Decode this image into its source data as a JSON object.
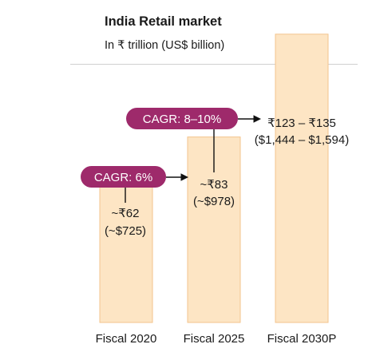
{
  "chart_data": {
    "type": "bar",
    "title": "India Retail market",
    "subtitle": "In ₹ trillion (US$ billion)",
    "categories": [
      "Fiscal 2020",
      "Fiscal 2025",
      "Fiscal 2030P"
    ],
    "values": [
      62,
      83,
      129
    ],
    "value_labels": [
      [
        "~₹62",
        "(~$725)"
      ],
      [
        "~₹83",
        "(~$978)"
      ],
      [
        "₹123 – ₹135",
        "($1,444 – $1,594)"
      ]
    ],
    "annotations": [
      {
        "label": "CAGR: 6%",
        "from": "Fiscal 2020",
        "to": "Fiscal 2025"
      },
      {
        "label": "CAGR: 8–10%",
        "from": "Fiscal 2025",
        "to": "Fiscal 2030P"
      }
    ],
    "ylim": [
      0,
      135
    ],
    "grid": false,
    "colors": {
      "bar_fill": "#fde5c4",
      "bar_stroke": "#f3c48e",
      "cagr_fill": "#9e2a6b",
      "arrow": "#111111"
    }
  }
}
